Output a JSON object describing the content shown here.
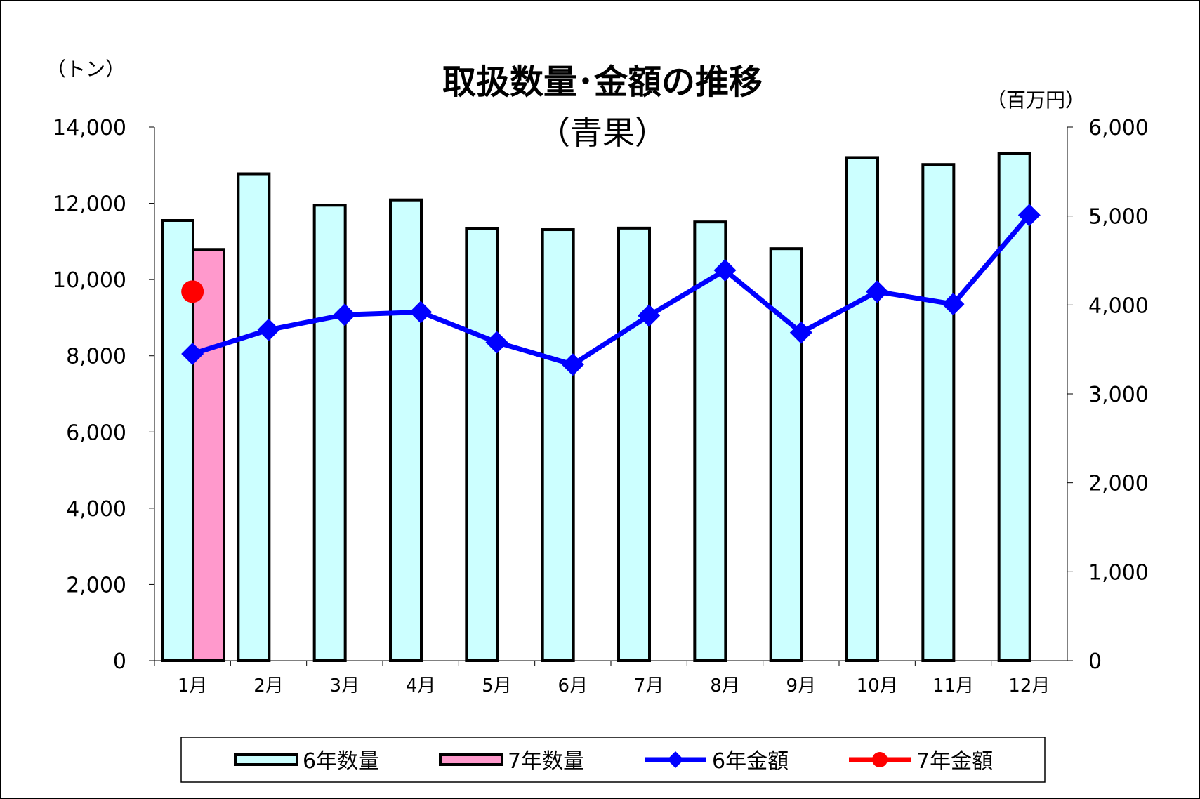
{
  "chart_data": {
    "type": "bar",
    "title": "取扱数量･金額の推移",
    "subtitle": "（青果）",
    "ylabel_left": "（トン）",
    "ylabel_right": "（百万円）",
    "categories": [
      "1月",
      "2月",
      "3月",
      "4月",
      "5月",
      "6月",
      "7月",
      "8月",
      "9月",
      "10月",
      "11月",
      "12月"
    ],
    "y_left": {
      "range": [
        0,
        14000
      ],
      "ticks": [
        "0",
        "2,000",
        "4,000",
        "6,000",
        "8,000",
        "10,000",
        "12,000",
        "14,000"
      ]
    },
    "y_right": {
      "range": [
        0,
        6000
      ],
      "ticks": [
        "0",
        "1,000",
        "2,000",
        "3,000",
        "4,000",
        "5,000",
        "6,000"
      ]
    },
    "grid": false,
    "legend_position": "bottom",
    "series": [
      {
        "name": "6年数量",
        "kind": "bar",
        "axis": "left",
        "color": "#ccffff",
        "values": [
          11550,
          12775,
          11950,
          12090,
          11330,
          11310,
          11350,
          11510,
          10810,
          13200,
          13020,
          13300
        ]
      },
      {
        "name": "7年数量",
        "kind": "bar",
        "axis": "left",
        "color": "#ff99cc",
        "values": [
          10790,
          null,
          null,
          null,
          null,
          null,
          null,
          null,
          null,
          null,
          null,
          null
        ]
      },
      {
        "name": "6年金額",
        "kind": "line",
        "axis": "right",
        "color": "#0000ff",
        "marker": "diamond",
        "values": [
          3450,
          3720,
          3890,
          3920,
          3580,
          3330,
          3880,
          4390,
          3690,
          4150,
          4010,
          5010
        ]
      },
      {
        "name": "7年金額",
        "kind": "line",
        "axis": "right",
        "color": "#ff0000",
        "marker": "circle",
        "values": [
          4150,
          null,
          null,
          null,
          null,
          null,
          null,
          null,
          null,
          null,
          null,
          null
        ]
      }
    ]
  }
}
